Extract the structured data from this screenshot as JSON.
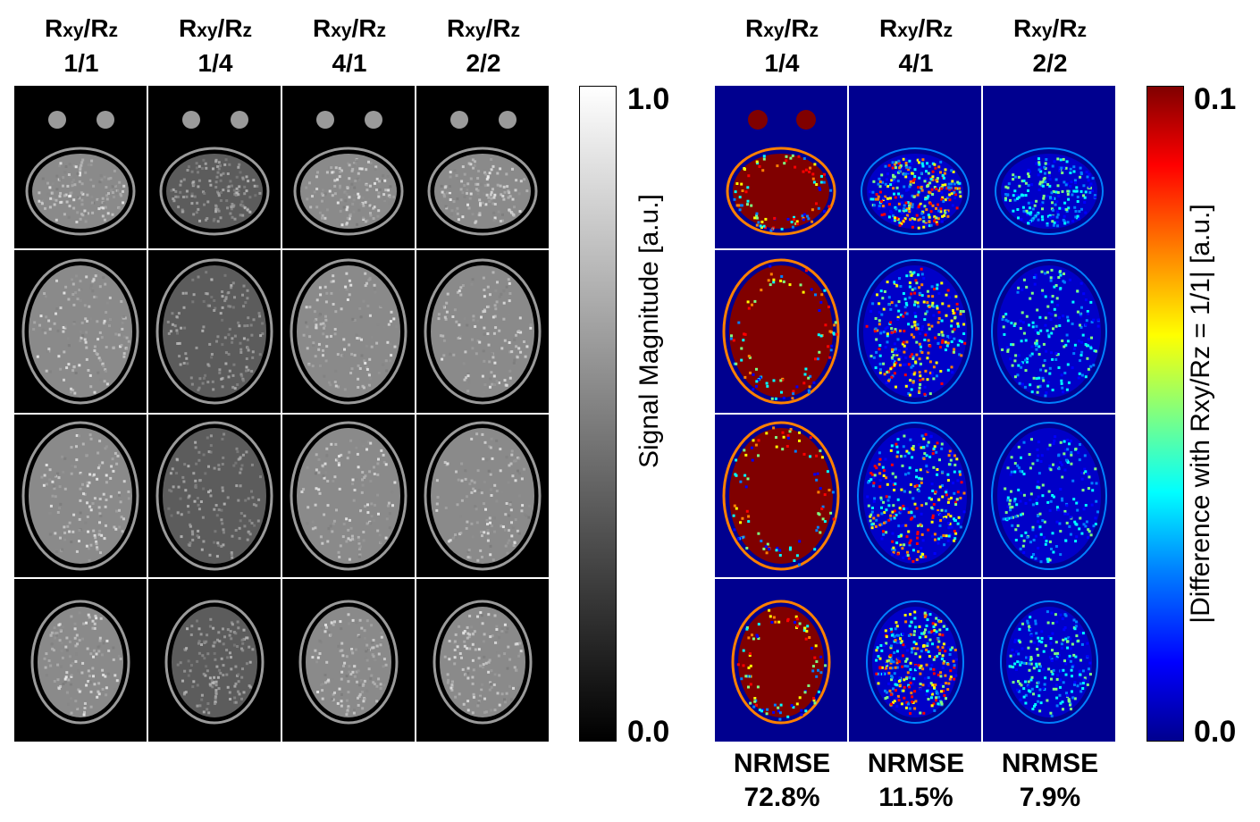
{
  "headers": {
    "prefix": "R",
    "sub_xy": "xy",
    "slash": "/R",
    "sub_z": "z",
    "left_columns": [
      "1/1",
      "1/4",
      "4/1",
      "2/2"
    ],
    "right_columns": [
      "1/4",
      "4/1",
      "2/2"
    ]
  },
  "grid": {
    "rows": 4
  },
  "colorbar_gray": {
    "max_label": "1.0",
    "min_label": "0.0",
    "label": "Signal Magnitude [a.u.]",
    "colors": [
      "#000000",
      "#ffffff"
    ]
  },
  "colorbar_jet": {
    "max_label": "0.1",
    "min_label": "0.0",
    "label": "|Difference with Rxy/Rz = 1/1| [a.u.]",
    "colors": [
      "#00008f",
      "#0000ff",
      "#00ffff",
      "#ffff00",
      "#ff0000",
      "#800000"
    ]
  },
  "nrmse": [
    {
      "title": "NRMSE",
      "value": "72.8%"
    },
    {
      "title": "NRMSE",
      "value": "11.5%"
    },
    {
      "title": "NRMSE",
      "value": "7.9%"
    }
  ]
}
